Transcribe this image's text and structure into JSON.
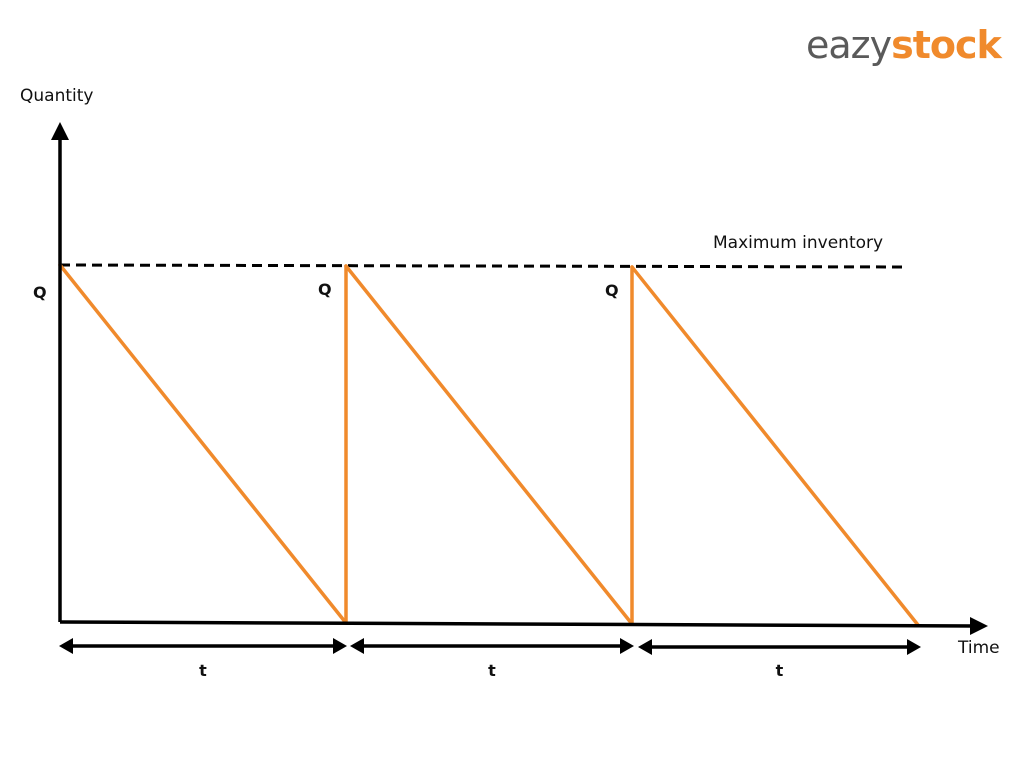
{
  "logo": {
    "part1": "eazy",
    "part2": "stock"
  },
  "chart_data": {
    "type": "line",
    "title": "",
    "xlabel": "Time",
    "ylabel": "Quantity",
    "y_tick_label": "Q",
    "ylim": [
      0,
      1
    ],
    "xlim": [
      0,
      3
    ],
    "reference_line": {
      "label": "Maximum inventory",
      "value": 1,
      "style": "dashed"
    },
    "series": [
      {
        "x": [
          0,
          1,
          1,
          2,
          2,
          3
        ],
        "y": [
          1,
          0,
          1,
          0,
          1,
          0
        ]
      }
    ],
    "peak_labels": [
      "Q",
      "Q",
      "Q"
    ],
    "period_labels": [
      "t",
      "t",
      "t"
    ],
    "colors": {
      "series": "#f08a2c",
      "axis": "#000000",
      "logo_gray": "#5a5a5a",
      "logo_orange": "#f08a2c"
    }
  }
}
